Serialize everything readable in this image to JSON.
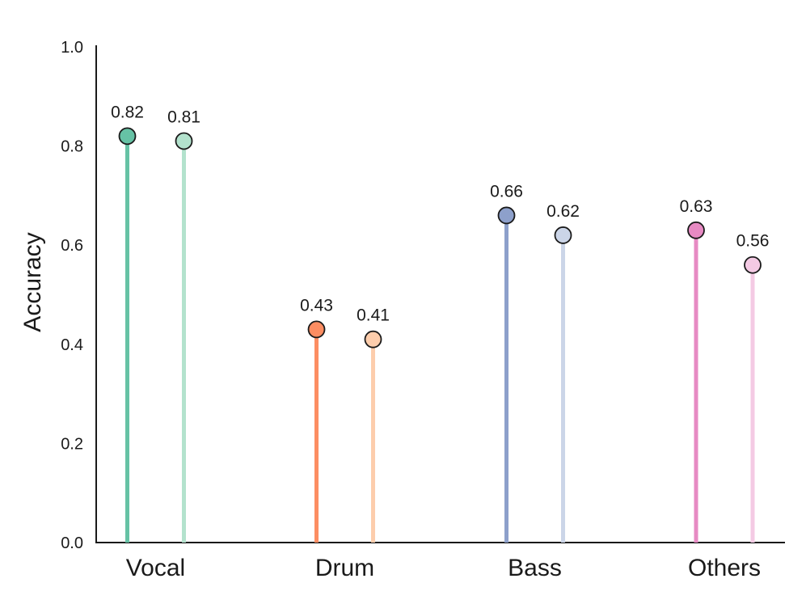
{
  "chart_data": {
    "type": "lollipop",
    "title": "",
    "xlabel": "",
    "ylabel": "Accuracy",
    "ylim": [
      0,
      1.0
    ],
    "yticks": [
      "0.0",
      "0.2",
      "0.4",
      "0.6",
      "0.8",
      "1.0"
    ],
    "grid": false,
    "legend": "none",
    "categories": [
      "Vocal",
      "Drum",
      "Bass",
      "Others"
    ],
    "series": [
      {
        "values": [
          0.82,
          0.43,
          0.66,
          0.63
        ],
        "labels": [
          "0.82",
          "0.43",
          "0.66",
          "0.63"
        ],
        "colors": [
          "#66c2a5",
          "#fc8d62",
          "#8da0cb",
          "#e78ac3"
        ]
      },
      {
        "values": [
          0.81,
          0.41,
          0.62,
          0.56
        ],
        "labels": [
          "0.81",
          "0.41",
          "0.62",
          "0.56"
        ],
        "colors": [
          "#b3e2cd",
          "#fdcdac",
          "#cbd5e8",
          "#f4cae4"
        ]
      }
    ]
  }
}
